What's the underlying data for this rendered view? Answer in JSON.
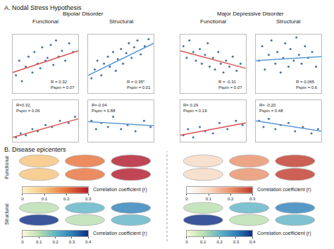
{
  "chart_data": [
    {
      "type": "scatter",
      "title": "Functional",
      "xlim": [
        0,
        1
      ],
      "ylim": [
        0,
        1
      ],
      "tick_labels": false,
      "annotations": [
        "R = 0.32",
        "Pspin = 0.07"
      ],
      "series": [
        {
          "type": "scatter",
          "color": "#4a6fa5",
          "marker": "circle",
          "x": [
            0.05,
            0.1,
            0.14,
            0.2,
            0.24,
            0.3,
            0.33,
            0.38,
            0.42,
            0.45,
            0.5,
            0.53,
            0.58,
            0.62,
            0.66,
            0.7,
            0.75,
            0.8,
            0.86,
            0.92
          ],
          "values": [
            0.3,
            0.55,
            0.2,
            0.45,
            0.62,
            0.35,
            0.7,
            0.5,
            0.42,
            0.78,
            0.55,
            0.6,
            0.82,
            0.48,
            0.9,
            0.62,
            0.72,
            0.55,
            0.85,
            0.7
          ]
        },
        {
          "type": "line",
          "color": "#d9534f",
          "line_style": "solid",
          "x": [
            0,
            1
          ],
          "values": [
            0.35,
            0.72
          ]
        }
      ]
    },
    {
      "type": "scatter",
      "title": "Structural",
      "xlim": [
        0,
        1
      ],
      "ylim": [
        0,
        1
      ],
      "tick_labels": false,
      "annotations": [
        "R = 0.35*",
        "Pspin = 0.01"
      ],
      "series": [
        {
          "type": "scatter",
          "color": "#4a6fa5",
          "marker": "circle",
          "x": [
            0.05,
            0.1,
            0.14,
            0.2,
            0.24,
            0.3,
            0.33,
            0.38,
            0.42,
            0.45,
            0.5,
            0.53,
            0.58,
            0.62,
            0.66,
            0.7,
            0.75,
            0.8,
            0.86,
            0.92
          ],
          "values": [
            0.25,
            0.4,
            0.55,
            0.3,
            0.5,
            0.62,
            0.45,
            0.7,
            0.38,
            0.58,
            0.75,
            0.5,
            0.68,
            0.85,
            0.6,
            0.78,
            0.9,
            0.66,
            0.8,
            0.92
          ]
        },
        {
          "type": "line",
          "color": "#5b9bd5",
          "line_style": "solid",
          "x": [
            0,
            1
          ],
          "values": [
            0.3,
            0.85
          ]
        }
      ]
    },
    {
      "type": "scatter",
      "title": "Functional",
      "xlim": [
        0,
        1
      ],
      "ylim": [
        0,
        1
      ],
      "tick_labels": false,
      "annotations": [
        "R = -0.31",
        "Pspin = 0.07"
      ],
      "series": [
        {
          "type": "scatter",
          "color": "#4a6fa5",
          "marker": "circle",
          "x": [
            0.05,
            0.1,
            0.14,
            0.2,
            0.24,
            0.3,
            0.33,
            0.38,
            0.42,
            0.45,
            0.5,
            0.53,
            0.58,
            0.62,
            0.66,
            0.7,
            0.75,
            0.8,
            0.86,
            0.92
          ],
          "values": [
            0.8,
            0.6,
            0.9,
            0.7,
            0.55,
            0.75,
            0.5,
            0.65,
            0.85,
            0.45,
            0.6,
            0.4,
            0.7,
            0.5,
            0.35,
            0.55,
            0.45,
            0.62,
            0.38,
            0.5
          ]
        },
        {
          "type": "line",
          "color": "#d9534f",
          "line_style": "solid",
          "x": [
            0,
            1
          ],
          "values": [
            0.72,
            0.42
          ]
        }
      ]
    },
    {
      "type": "scatter",
      "title": "Structural",
      "xlim": [
        0,
        1
      ],
      "ylim": [
        0,
        1
      ],
      "tick_labels": false,
      "annotations": [
        "R = 0.065",
        "Pspin = 0.6"
      ],
      "series": [
        {
          "type": "scatter",
          "color": "#4a6fa5",
          "marker": "circle",
          "x": [
            0.05,
            0.1,
            0.14,
            0.2,
            0.24,
            0.3,
            0.33,
            0.38,
            0.42,
            0.45,
            0.5,
            0.53,
            0.58,
            0.62,
            0.66,
            0.7,
            0.75,
            0.8,
            0.86,
            0.92
          ],
          "values": [
            0.55,
            0.8,
            0.4,
            0.65,
            0.9,
            0.5,
            0.7,
            0.35,
            0.6,
            0.85,
            0.45,
            0.75,
            0.55,
            0.95,
            0.65,
            0.5,
            0.8,
            0.6,
            0.7,
            0.45
          ]
        },
        {
          "type": "line",
          "color": "#5b9bd5",
          "line_style": "solid",
          "x": [
            0,
            1
          ],
          "values": [
            0.55,
            0.62
          ]
        }
      ]
    },
    {
      "type": "scatter",
      "xlim": [
        0,
        1
      ],
      "ylim": [
        0,
        1
      ],
      "tick_labels": false,
      "annotations": [
        "R=0.32,",
        "Pspin = 0.06"
      ],
      "series": [
        {
          "type": "scatter",
          "color": "#4a6fa5",
          "marker": "circle",
          "x": [
            0.05,
            0.12,
            0.2,
            0.3,
            0.38,
            0.5,
            0.6,
            0.72,
            0.85,
            0.95
          ],
          "values": [
            0.1,
            0.2,
            0.15,
            0.3,
            0.25,
            0.4,
            0.35,
            0.5,
            0.45,
            0.6
          ]
        },
        {
          "type": "line",
          "color": "#d9534f",
          "line_style": "solid",
          "x": [
            0,
            1
          ],
          "values": [
            0.1,
            0.55
          ]
        }
      ]
    },
    {
      "type": "scatter",
      "xlim": [
        0,
        1
      ],
      "ylim": [
        0,
        1
      ],
      "tick_labels": false,
      "annotations": [
        "R=-0.04",
        "Pspin = 0.88"
      ],
      "series": [
        {
          "type": "scatter",
          "color": "#4a6fa5",
          "marker": "circle",
          "x": [
            0.05,
            0.12,
            0.2,
            0.3,
            0.38,
            0.5,
            0.6,
            0.72,
            0.85,
            0.95
          ],
          "values": [
            0.5,
            0.3,
            0.45,
            0.35,
            0.6,
            0.3,
            0.4,
            0.25,
            0.5,
            0.35
          ]
        },
        {
          "type": "line",
          "color": "#5b9bd5",
          "line_style": "solid",
          "x": [
            0,
            1
          ],
          "values": [
            0.48,
            0.38
          ]
        }
      ]
    },
    {
      "type": "scatter",
      "xlim": [
        0,
        1
      ],
      "ylim": [
        0,
        1
      ],
      "tick_labels": false,
      "annotations": [
        "R= 0.29",
        "Pspin = 0.19"
      ],
      "series": [
        {
          "type": "scatter",
          "color": "#4a6fa5",
          "marker": "circle",
          "x": [
            0.05,
            0.12,
            0.2,
            0.3,
            0.38,
            0.5,
            0.6,
            0.72,
            0.85,
            0.95
          ],
          "values": [
            0.15,
            0.3,
            0.1,
            0.35,
            0.25,
            0.2,
            0.45,
            0.3,
            0.5,
            0.4
          ]
        },
        {
          "type": "line",
          "color": "#d9534f",
          "line_style": "solid",
          "x": [
            0,
            1
          ],
          "values": [
            0.15,
            0.45
          ]
        }
      ]
    },
    {
      "type": "scatter",
      "xlim": [
        0,
        1
      ],
      "ylim": [
        0,
        1
      ],
      "tick_labels": false,
      "annotations": [
        "R= -0.20",
        "Pspin = 0.48"
      ],
      "series": [
        {
          "type": "scatter",
          "color": "#4a6fa5",
          "marker": "circle",
          "x": [
            0.05,
            0.12,
            0.2,
            0.3,
            0.38,
            0.5,
            0.6,
            0.72,
            0.85,
            0.95
          ],
          "values": [
            0.5,
            0.35,
            0.55,
            0.3,
            0.4,
            0.45,
            0.25,
            0.35,
            0.2,
            0.3
          ]
        },
        {
          "type": "line",
          "color": "#5b9bd5",
          "line_style": "solid",
          "x": [
            0,
            1
          ],
          "values": [
            0.5,
            0.25
          ]
        }
      ]
    }
  ],
  "figure": {
    "panel_a_title": "A. Nodal Stress Hypothesis",
    "groups": [
      "Bipolar Disorder",
      "Major Depressive Disorder"
    ],
    "panel_b": {
      "title": "B. Disease epicenters",
      "rows": [
        "Functional",
        "Structural"
      ],
      "colorbars": [
        {
          "label": "Correlation coefficient (r)",
          "lim": [
            0,
            0.3
          ],
          "ticks": [
            0,
            0.1,
            0.2,
            0.3
          ],
          "colors": [
            "#fbf3c4",
            "#f6c27a",
            "#e8703a",
            "#b2182b"
          ]
        },
        {
          "label": "Correlation coefficient (r)",
          "lim": [
            0,
            0.3
          ],
          "ticks": [
            0,
            0.1,
            0.2,
            0.3
          ],
          "colors": [
            "#ffffff",
            "#f7d9c4",
            "#e8906a",
            "#c0392b"
          ]
        },
        {
          "label": "Correlation coefficient (r)",
          "lim": [
            0,
            0.4
          ],
          "ticks": [
            0,
            0.1,
            0.2,
            0.3,
            0.4
          ],
          "colors": [
            "#fbf7d5",
            "#b9dfb0",
            "#5fb3c6",
            "#2c7fb8",
            "#0c2c84"
          ]
        },
        {
          "label": "Correlation coefficient (r)",
          "lim": [
            0,
            0.4
          ],
          "ticks": [
            0,
            0.1,
            0.2,
            0.3,
            0.4
          ],
          "colors": [
            "#fbf7d5",
            "#b9dfb0",
            "#5fb3c6",
            "#2c7fb8",
            "#0c2c84"
          ]
        }
      ]
    }
  }
}
